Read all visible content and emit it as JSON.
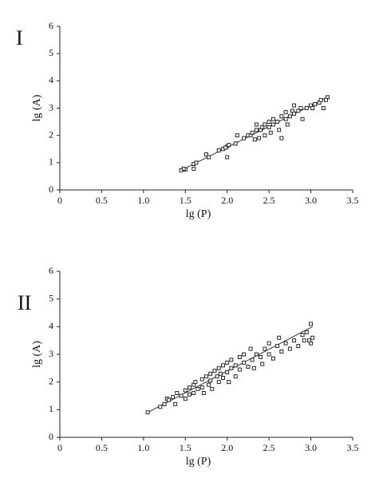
{
  "chart_data": [
    {
      "type": "scatter",
      "label": "I",
      "xlabel": "lg (P)",
      "ylabel": "lg (A)",
      "color": "#111",
      "xlim": [
        0,
        3.5
      ],
      "ylim": [
        0,
        6
      ],
      "xticks": [
        0,
        0.5,
        {
          "value": 1,
          "label": "1.0"
        },
        1.5,
        {
          "value": 2,
          "label": "2.0"
        },
        2.5,
        {
          "value": 3,
          "label": "3.0"
        },
        3.5
      ],
      "yticks": [
        0,
        1,
        2,
        3,
        4,
        5,
        6
      ],
      "series": [
        {
          "x": [
            1.45,
            1.5,
            1.48,
            1.6,
            1.63,
            1.6,
            1.75,
            1.78,
            1.9,
            1.95,
            2.0,
            1.98,
            2.02,
            2.0,
            2.1,
            2.2,
            2.25,
            2.28,
            2.3,
            2.35,
            2.35,
            2.38,
            2.4,
            2.42,
            2.45,
            2.45,
            2.5,
            2.5,
            2.52,
            2.55,
            2.55,
            2.6,
            2.62,
            2.65,
            2.7,
            2.7,
            2.72,
            2.75,
            2.78,
            2.8,
            2.8,
            2.85,
            2.88,
            2.9,
            2.95,
            3.0,
            3.02,
            3.05,
            3.1,
            3.12,
            3.15,
            3.2,
            3.18,
            2.33,
            2.65,
            2.12
          ],
          "values": [
            0.72,
            0.75,
            0.78,
            0.95,
            1.0,
            0.78,
            1.3,
            1.2,
            1.45,
            1.5,
            1.6,
            1.55,
            1.65,
            1.2,
            1.7,
            1.9,
            2.0,
            2.0,
            2.1,
            2.2,
            2.4,
            1.9,
            2.2,
            2.3,
            2.0,
            2.4,
            2.3,
            2.5,
            2.1,
            2.4,
            2.6,
            2.5,
            2.2,
            2.7,
            2.6,
            2.85,
            2.4,
            2.7,
            2.9,
            2.8,
            3.1,
            2.9,
            3.0,
            2.6,
            3.0,
            3.1,
            3.0,
            3.15,
            3.2,
            3.3,
            3.0,
            3.4,
            3.3,
            1.85,
            1.9,
            2.0
          ]
        }
      ],
      "fit": {
        "x": [
          1.45,
          3.2
        ],
        "y": [
          0.72,
          3.4
        ]
      }
    },
    {
      "type": "scatter",
      "label": "II",
      "xlabel": "lg (P)",
      "ylabel": "lg (A)",
      "color": "#111",
      "xlim": [
        0,
        3.5
      ],
      "ylim": [
        0,
        6
      ],
      "xticks": [
        0,
        0.5,
        {
          "value": 1,
          "label": "1.0"
        },
        1.5,
        {
          "value": 2,
          "label": "2.0"
        },
        2.5,
        {
          "value": 3,
          "label": "3.0"
        },
        3.5
      ],
      "yticks": [
        0,
        1,
        2,
        3,
        4,
        5,
        6
      ],
      "series": [
        {
          "x": [
            1.05,
            1.2,
            1.25,
            1.28,
            1.3,
            1.35,
            1.38,
            1.4,
            1.45,
            1.5,
            1.5,
            1.55,
            1.55,
            1.6,
            1.6,
            1.62,
            1.65,
            1.7,
            1.7,
            1.72,
            1.75,
            1.78,
            1.8,
            1.8,
            1.82,
            1.85,
            1.88,
            1.9,
            1.9,
            1.92,
            1.95,
            1.95,
            2.0,
            2.0,
            2.02,
            2.05,
            2.05,
            2.1,
            2.1,
            2.15,
            2.15,
            2.2,
            2.2,
            2.25,
            2.28,
            2.3,
            2.32,
            2.35,
            2.4,
            2.42,
            2.45,
            2.5,
            2.5,
            2.55,
            2.6,
            2.62,
            2.65,
            2.7,
            2.75,
            2.8,
            2.85,
            2.9,
            2.92,
            2.95,
            3.0,
            3.0,
            3.02,
            2.98
          ],
          "values": [
            0.9,
            1.1,
            1.2,
            1.4,
            1.35,
            1.45,
            1.2,
            1.6,
            1.5,
            1.7,
            1.4,
            1.8,
            1.55,
            1.9,
            1.6,
            2.0,
            1.75,
            2.1,
            1.8,
            1.6,
            2.2,
            1.9,
            2.3,
            2.05,
            1.75,
            2.4,
            2.2,
            2.5,
            2.0,
            2.3,
            2.6,
            2.15,
            2.7,
            2.35,
            2.0,
            2.8,
            2.5,
            2.6,
            2.2,
            2.9,
            2.45,
            3.0,
            2.7,
            2.55,
            3.2,
            2.8,
            2.5,
            3.0,
            2.9,
            2.65,
            3.2,
            3.0,
            3.4,
            2.85,
            3.3,
            3.6,
            3.1,
            3.4,
            3.2,
            3.5,
            3.3,
            3.7,
            3.5,
            3.8,
            3.4,
            4.1,
            3.6,
            3.5
          ]
        }
      ],
      "fit": {
        "x": [
          1.05,
          3.02
        ],
        "y": [
          0.9,
          4.0
        ]
      }
    }
  ]
}
